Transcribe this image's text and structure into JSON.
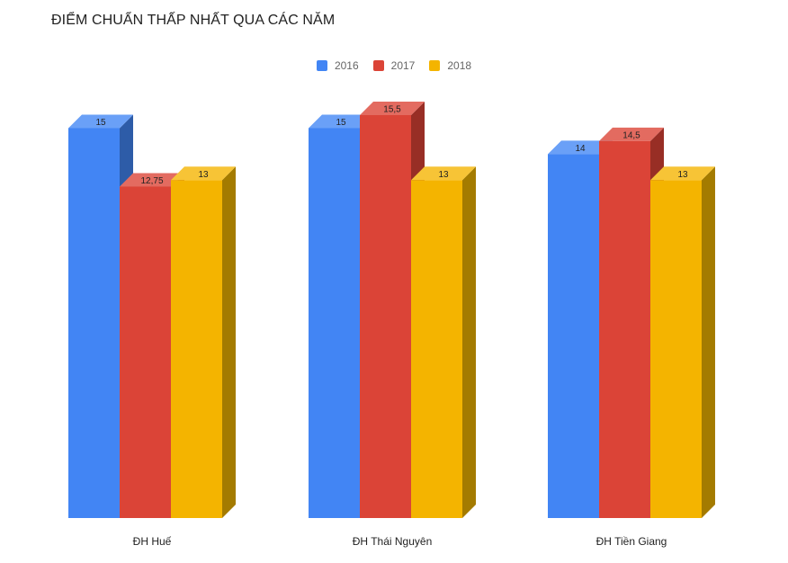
{
  "chart_data": {
    "type": "bar",
    "title": "ĐIỂM CHUẨN THẤP NHẤT QUA CÁC NĂM",
    "categories": [
      "ĐH Huế",
      "ĐH Thái Nguyên",
      "ĐH Tiền Giang"
    ],
    "series": [
      {
        "name": "2016",
        "color": "#4285f4",
        "side_color": "#2d5ca8",
        "top_color": "#6aa0f7",
        "values": [
          15,
          15,
          14
        ],
        "labels": [
          "15",
          "15",
          "14"
        ]
      },
      {
        "name": "2017",
        "color": "#db4437",
        "side_color": "#982e25",
        "top_color": "#e36b60",
        "values": [
          12.75,
          15.5,
          14.5
        ],
        "labels": [
          "12,75",
          "15,5",
          "14,5"
        ]
      },
      {
        "name": "2018",
        "color": "#f4b400",
        "side_color": "#a47b00",
        "top_color": "#f7c436",
        "values": [
          13,
          13,
          13
        ],
        "labels": [
          "13",
          "13",
          "13"
        ]
      }
    ],
    "ylim": [
      0,
      15.5
    ],
    "xlabel": "",
    "ylabel": "",
    "legend": "top-center",
    "grid": false,
    "style": "3d"
  }
}
